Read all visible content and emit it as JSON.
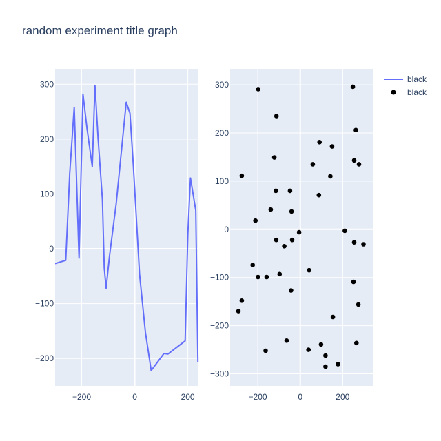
{
  "chart_data": {
    "type": "line+scatter",
    "title": "random experiment title graph",
    "legend": {
      "placement": "top-right",
      "entries": [
        {
          "name": "black",
          "kind": "line",
          "color": "#636efa"
        },
        {
          "name": "black",
          "kind": "marker",
          "color": "#000000"
        }
      ]
    },
    "background": "#e5ecf6",
    "grid": true,
    "subplots": [
      {
        "type": "line",
        "series_name": "black",
        "color": "#636efa",
        "xlim": [
          -300,
          240
        ],
        "ylim": [
          -250,
          328
        ],
        "xticks": [
          -200,
          0,
          200
        ],
        "xtick_labels": [
          "−200",
          "0",
          "200"
        ],
        "yticks": [
          -200,
          -100,
          0,
          100,
          200,
          300
        ],
        "ytick_labels": [
          "−200",
          "−100",
          "0",
          "100",
          "200",
          "300"
        ],
        "x": [
          -300,
          -260,
          -245,
          -228,
          -210,
          -195,
          -180,
          -160,
          -150,
          -138,
          -122,
          -115,
          -108,
          -95,
          -70,
          -32,
          -18,
          -5,
          18,
          40,
          62,
          110,
          125,
          190,
          200,
          210,
          230,
          238
        ],
        "y": [
          -27,
          -21,
          138,
          258,
          -17,
          282,
          220,
          150,
          298,
          200,
          90,
          -35,
          -72,
          -12,
          82,
          267,
          247,
          150,
          -46,
          -152,
          -222,
          -191,
          -192,
          -168,
          26,
          129,
          70,
          -206
        ]
      },
      {
        "type": "scatter",
        "series_name": "black",
        "color": "#000000",
        "xlim": [
          -330,
          345
        ],
        "ylim": [
          -325,
          333
        ],
        "xticks": [
          -200,
          0,
          200
        ],
        "xtick_labels": [
          "−200",
          "0",
          "200"
        ],
        "yticks": [
          -300,
          -200,
          -100,
          0,
          100,
          200,
          300
        ],
        "ytick_labels": [
          "−300",
          "−200",
          "−100",
          "0",
          "100",
          "200",
          "300"
        ],
        "x": [
          -198,
          -112,
          248,
          262,
          91,
          150,
          59,
          -122,
          254,
          277,
          -275,
          142,
          -115,
          -48,
          88,
          -139,
          -41,
          -211,
          -5,
          -113,
          -38,
          210,
          -75,
          254,
          298,
          -224,
          -199,
          -158,
          -97,
          42,
          -43,
          251,
          -275,
          274,
          -291,
          154,
          -64,
          265,
          98,
          39,
          -163,
          119,
          178,
          119
        ],
        "y": [
          291,
          235,
          296,
          206,
          181,
          172,
          135,
          149,
          143,
          135,
          111,
          110,
          80,
          80,
          71,
          41,
          37,
          18,
          -6,
          -22,
          -22,
          -3,
          -35,
          -27,
          -31,
          -74,
          -99,
          -99,
          -93,
          -85,
          -127,
          -109,
          -148,
          -156,
          -170,
          -182,
          -231,
          -236,
          -239,
          -250,
          -252,
          -262,
          -280,
          -285
        ]
      }
    ]
  }
}
